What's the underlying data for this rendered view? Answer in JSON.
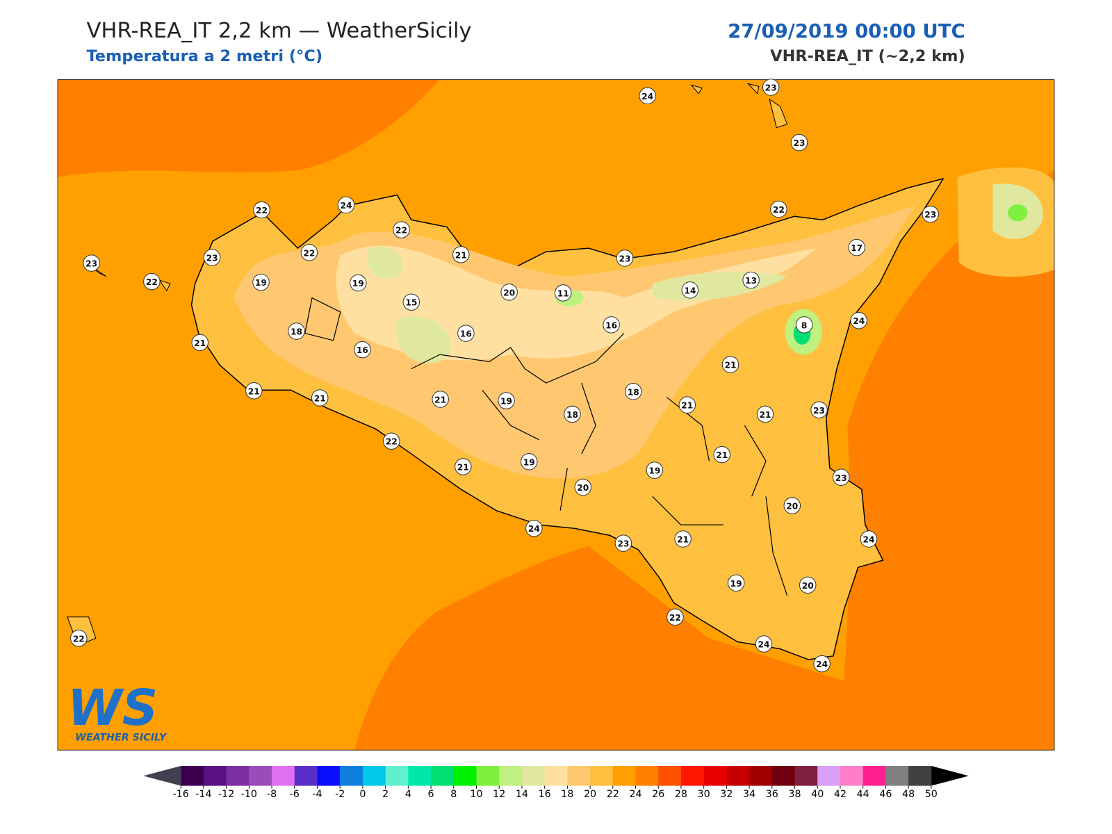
{
  "header": {
    "title": "VHR-REA_IT 2,2 km — WeatherSicily",
    "subtitle": "Temperatura a 2 metri (°C)",
    "date": "27/09/2019 00:00 UTC",
    "model": "VHR-REA_IT (~2,2 km)"
  },
  "map": {
    "stations": [
      24,
      23,
      23,
      22,
      24,
      22,
      23,
      22,
      23,
      22,
      21,
      23,
      22,
      23,
      17,
      19,
      19,
      15,
      20,
      11,
      14,
      13,
      8,
      24,
      16,
      16,
      18,
      16,
      21,
      21,
      21,
      21,
      21,
      19,
      18,
      18,
      21,
      21,
      23,
      22,
      21,
      19,
      21,
      19,
      23,
      20,
      20,
      24,
      23,
      21,
      24,
      19,
      20,
      22,
      24,
      24,
      22
    ],
    "logo": {
      "initials": "WS",
      "name": "WEATHER SICILY"
    }
  },
  "colorbar": {
    "ticks": [
      -16,
      -14,
      -12,
      -10,
      -8,
      -6,
      -4,
      -2,
      0,
      2,
      4,
      6,
      8,
      10,
      12,
      14,
      16,
      18,
      20,
      22,
      24,
      26,
      28,
      30,
      32,
      34,
      36,
      38,
      40,
      42,
      44,
      46,
      48,
      50
    ],
    "colors": [
      "#3d0050",
      "#5a1080",
      "#7a2fa0",
      "#9a4db8",
      "#e070f0",
      "#5a2ec8",
      "#0a10ff",
      "#1080e0",
      "#00c8e8",
      "#60f0d0",
      "#00e8a8",
      "#00e070",
      "#00f000",
      "#80f040",
      "#c0f080",
      "#e0e8a0",
      "#ffe0a0",
      "#ffc870",
      "#ffc040",
      "#ffa000",
      "#ff8000",
      "#ff5000",
      "#ff1800",
      "#e80000",
      "#c80000",
      "#a00000",
      "#700010",
      "#802040",
      "#d8a0f8",
      "#ff80c8",
      "#ff2090",
      "#808080",
      "#404040"
    ]
  }
}
